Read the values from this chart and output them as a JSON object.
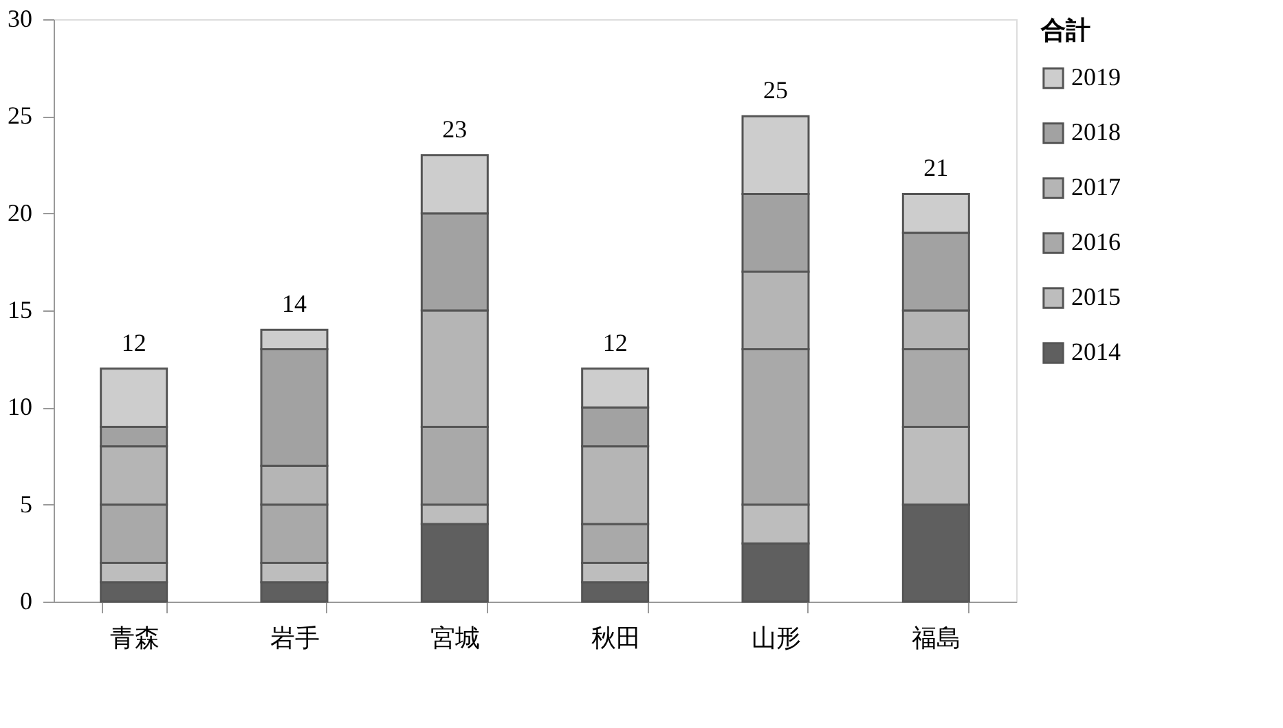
{
  "chart_data": {
    "type": "bar",
    "stacked": true,
    "legend_title": "合計",
    "legend": "right",
    "grid": false,
    "categories": [
      "青森",
      "岩手",
      "宮城",
      "秋田",
      "山形",
      "福島"
    ],
    "series": [
      {
        "name": "2014",
        "color": "#5f5f5f",
        "values": [
          1,
          1,
          4,
          1,
          3,
          5
        ]
      },
      {
        "name": "2015",
        "color": "#bdbdbd",
        "values": [
          1,
          1,
          1,
          1,
          2,
          4
        ]
      },
      {
        "name": "2016",
        "color": "#a9a9a9",
        "values": [
          3,
          3,
          4,
          2,
          8,
          4
        ]
      },
      {
        "name": "2017",
        "color": "#b5b5b5",
        "values": [
          3,
          2,
          6,
          4,
          4,
          2
        ]
      },
      {
        "name": "2018",
        "color": "#a2a2a2",
        "values": [
          1,
          6,
          5,
          2,
          4,
          4
        ]
      },
      {
        "name": "2019",
        "color": "#cdcdcd",
        "values": [
          3,
          1,
          3,
          2,
          4,
          2
        ]
      }
    ],
    "totals": [
      "12",
      "14",
      "23",
      "12",
      "25",
      "21"
    ],
    "ylim": [
      0,
      30
    ],
    "yticks": [
      0,
      5,
      10,
      15,
      20,
      25,
      30
    ]
  }
}
